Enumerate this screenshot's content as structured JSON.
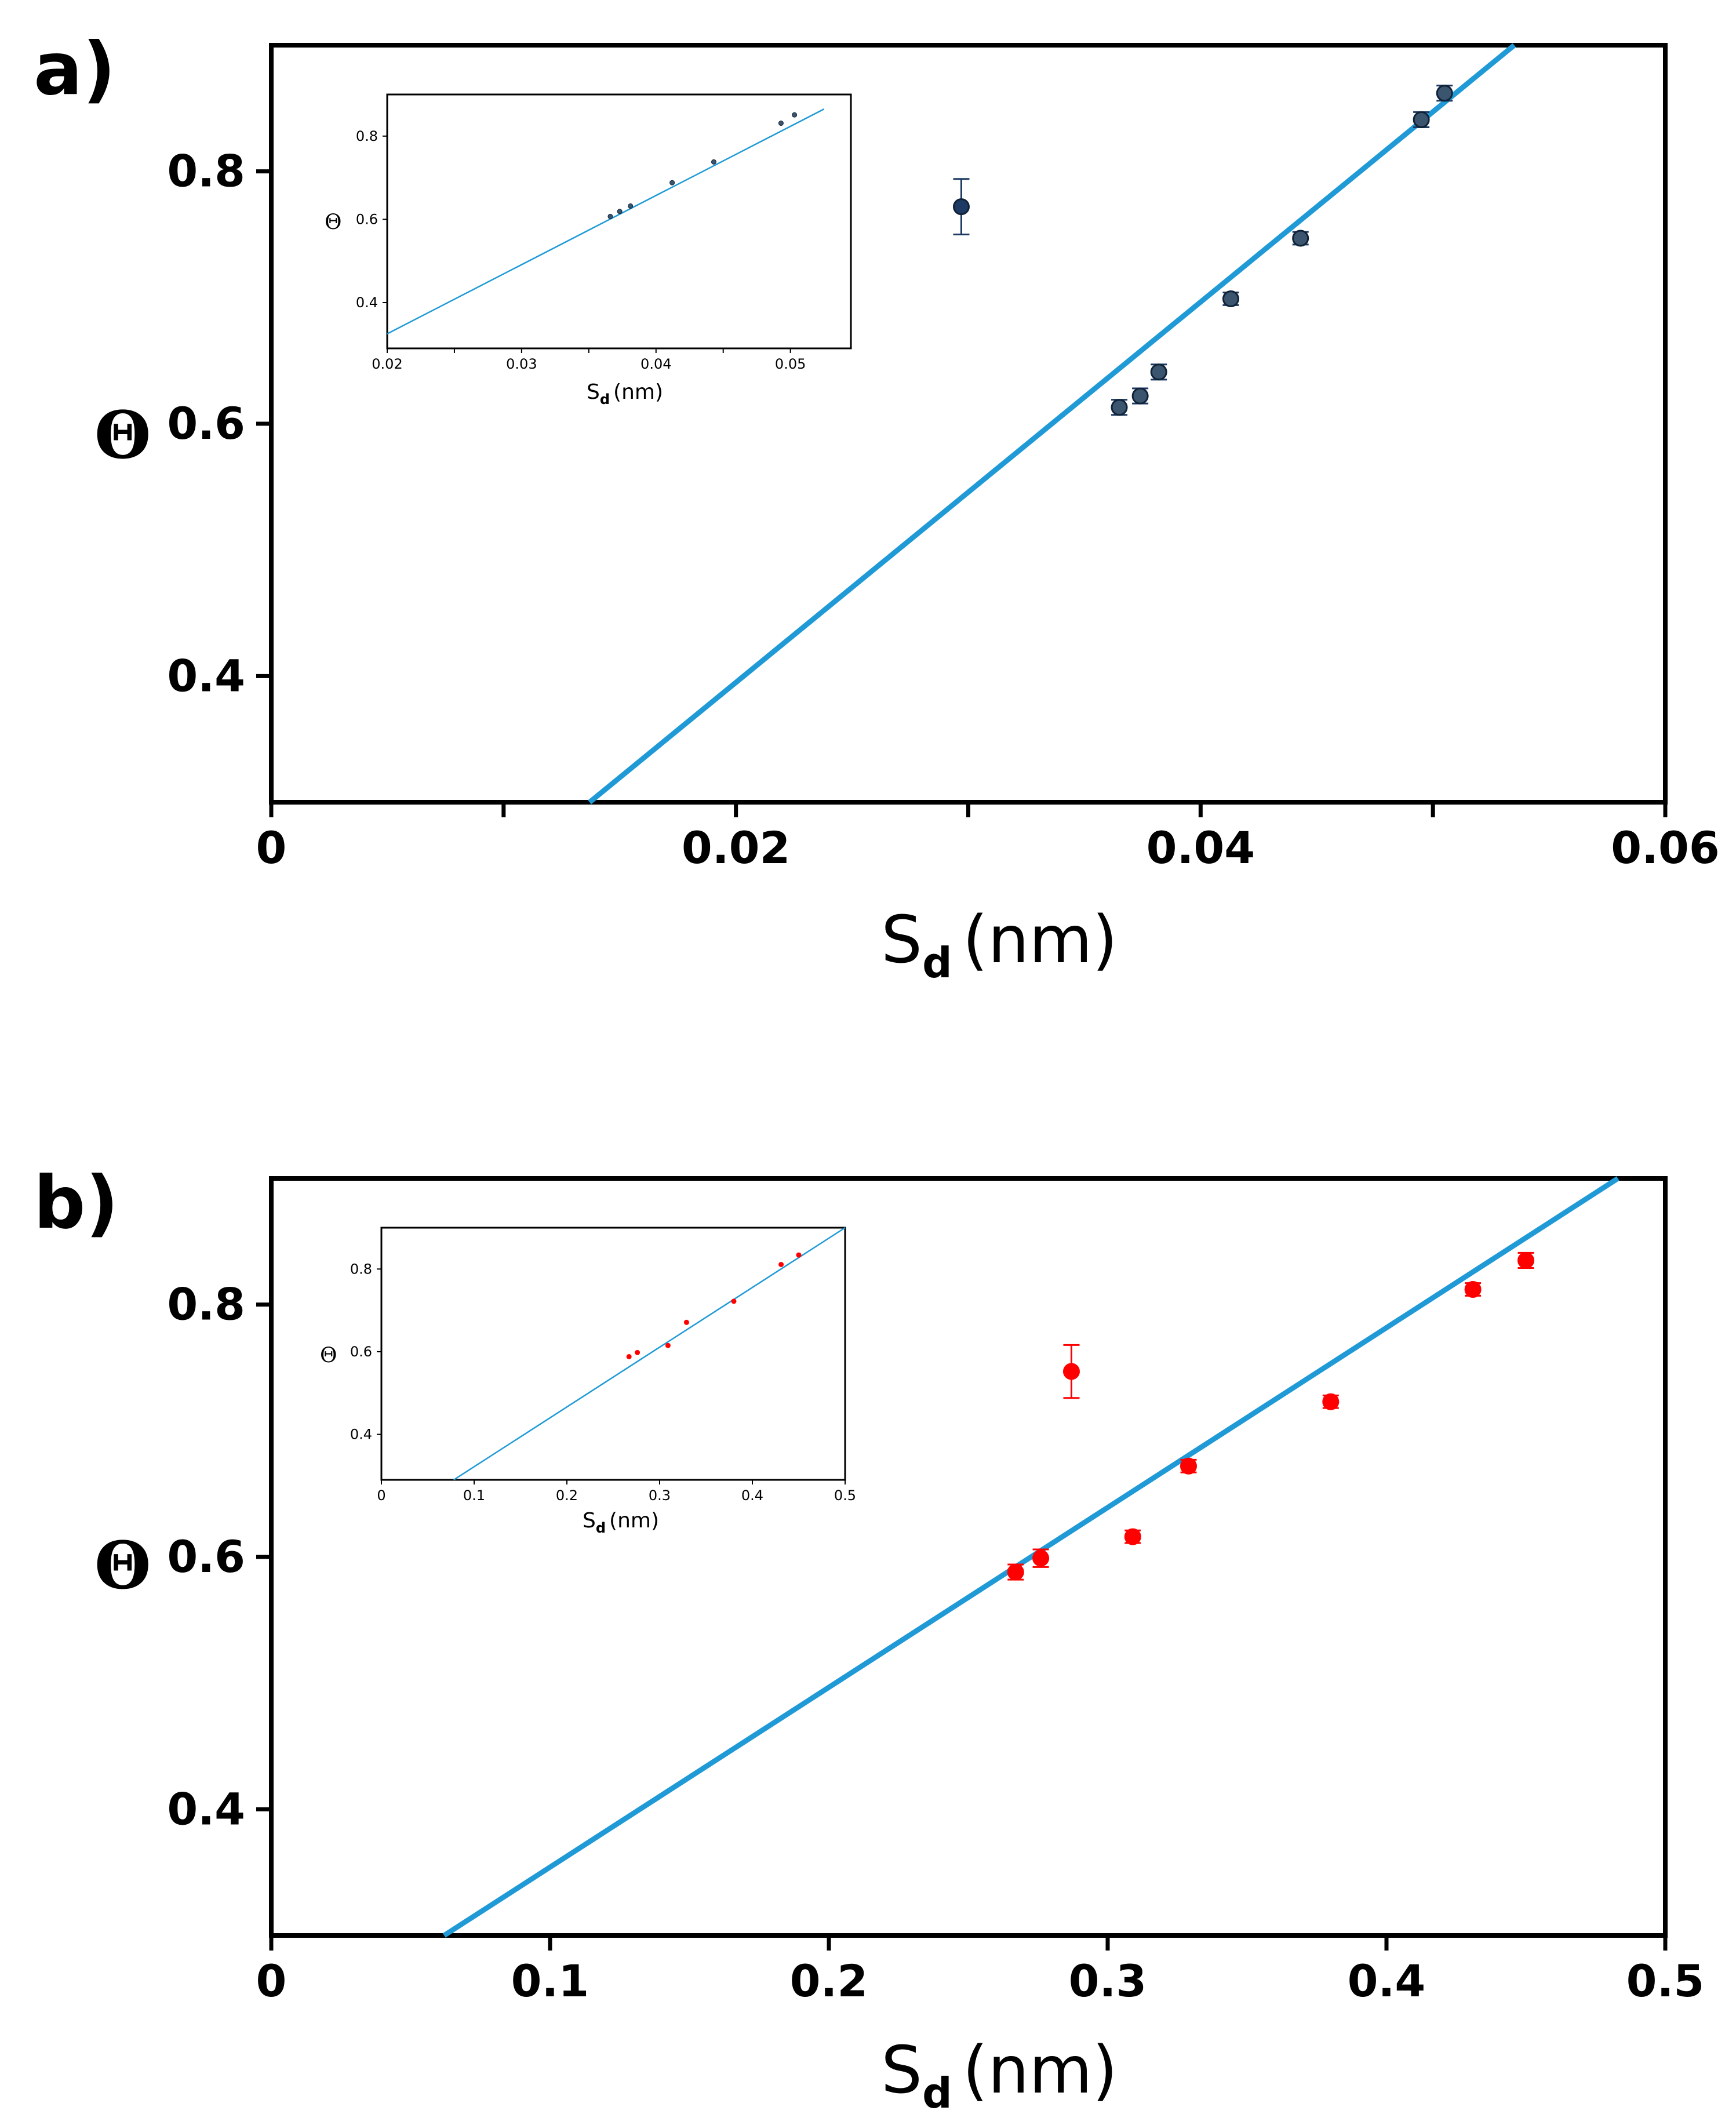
{
  "colors": {
    "fit_line": "#1f9ad6",
    "series_a": "#1c3a63",
    "series_a_fill": "#3c556f",
    "series_b": "#ff0000",
    "axis": "#000000"
  },
  "chart_data": [
    {
      "id": "a",
      "type": "scatter",
      "panel_label": "a)",
      "ylabel": "Θ",
      "xlabel_main": "S",
      "xlabel_sub": "d",
      "xlabel_unit": "(nm)",
      "xlim": [
        0,
        0.06
      ],
      "ylim": [
        0.3,
        0.9
      ],
      "xticks": [
        {
          "value": 0,
          "label": "0"
        },
        {
          "value": 0.01,
          "label": ""
        },
        {
          "value": 0.02,
          "label": "0.02"
        },
        {
          "value": 0.03,
          "label": ""
        },
        {
          "value": 0.04,
          "label": "0.04"
        },
        {
          "value": 0.05,
          "label": ""
        },
        {
          "value": 0.06,
          "label": "0.06"
        }
      ],
      "yticks": [
        {
          "value": 0.4,
          "label": "0.4"
        },
        {
          "value": 0.6,
          "label": "0.6"
        },
        {
          "value": 0.8,
          "label": "0.8"
        }
      ],
      "fit_line": {
        "x": [
          0.0137,
          0.0535
        ],
        "y": [
          0.3,
          0.9
        ]
      },
      "points": [
        {
          "x": 0.0297,
          "y": 0.772,
          "err": 0.022,
          "highlight": true
        },
        {
          "x": 0.0365,
          "y": 0.613,
          "err": 0.006
        },
        {
          "x": 0.0374,
          "y": 0.622,
          "err": 0.006
        },
        {
          "x": 0.0382,
          "y": 0.641,
          "err": 0.006
        },
        {
          "x": 0.0413,
          "y": 0.699,
          "err": 0.005
        },
        {
          "x": 0.0443,
          "y": 0.747,
          "err": 0.005
        },
        {
          "x": 0.0495,
          "y": 0.841,
          "err": 0.006
        },
        {
          "x": 0.0505,
          "y": 0.862,
          "err": 0.006
        }
      ],
      "inset": {
        "xlim": [
          0.02,
          0.0545
        ],
        "ylim": [
          0.29,
          0.9
        ],
        "xticks": [
          {
            "value": 0.02,
            "label": "0.02"
          },
          {
            "value": 0.025,
            "label": ""
          },
          {
            "value": 0.03,
            "label": "0.03"
          },
          {
            "value": 0.035,
            "label": ""
          },
          {
            "value": 0.04,
            "label": "0.04"
          },
          {
            "value": 0.045,
            "label": ""
          },
          {
            "value": 0.05,
            "label": "0.05"
          }
        ],
        "yticks": [
          {
            "value": 0.4,
            "label": "0.4"
          },
          {
            "value": 0.6,
            "label": "0.6"
          },
          {
            "value": 0.8,
            "label": "0.8"
          }
        ],
        "ylabel": "Θ",
        "xlabel_main": "S",
        "xlabel_sub": "d",
        "xlabel_unit": "(nm)",
        "fit_line": {
          "x": [
            0.02,
            0.0525
          ],
          "y": [
            0.325,
            0.865
          ]
        },
        "points": [
          {
            "x": 0.0366,
            "y": 0.607
          },
          {
            "x": 0.0373,
            "y": 0.619
          },
          {
            "x": 0.0381,
            "y": 0.632
          },
          {
            "x": 0.0412,
            "y": 0.688
          },
          {
            "x": 0.0443,
            "y": 0.738
          },
          {
            "x": 0.0493,
            "y": 0.831
          },
          {
            "x": 0.0503,
            "y": 0.851
          }
        ]
      }
    },
    {
      "id": "b",
      "type": "scatter",
      "panel_label": "b)",
      "ylabel": "Θ",
      "xlabel_main": "S",
      "xlabel_sub": "d",
      "xlabel_unit": "(nm)",
      "xlim": [
        0,
        0.5
      ],
      "ylim": [
        0.3,
        0.9
      ],
      "xticks": [
        {
          "value": 0,
          "label": "0"
        },
        {
          "value": 0.1,
          "label": "0.1"
        },
        {
          "value": 0.2,
          "label": "0.2"
        },
        {
          "value": 0.3,
          "label": "0.3"
        },
        {
          "value": 0.4,
          "label": "0.4"
        },
        {
          "value": 0.5,
          "label": "0.5"
        }
      ],
      "yticks": [
        {
          "value": 0.4,
          "label": "0.4"
        },
        {
          "value": 0.6,
          "label": "0.6"
        },
        {
          "value": 0.8,
          "label": "0.8"
        }
      ],
      "fit_line": {
        "x": [
          0.062,
          0.483
        ],
        "y": [
          0.3,
          0.9
        ]
      },
      "points": [
        {
          "x": 0.267,
          "y": 0.588,
          "err": 0.006
        },
        {
          "x": 0.276,
          "y": 0.599,
          "err": 0.007
        },
        {
          "x": 0.287,
          "y": 0.747,
          "err": 0.021
        },
        {
          "x": 0.309,
          "y": 0.616,
          "err": 0.005
        },
        {
          "x": 0.329,
          "y": 0.672,
          "err": 0.005
        },
        {
          "x": 0.38,
          "y": 0.723,
          "err": 0.005
        },
        {
          "x": 0.431,
          "y": 0.812,
          "err": 0.005
        },
        {
          "x": 0.45,
          "y": 0.835,
          "err": 0.006
        }
      ],
      "inset": {
        "xlim": [
          0,
          0.5
        ],
        "ylim": [
          0.29,
          0.9
        ],
        "xticks": [
          {
            "value": 0,
            "label": "0"
          },
          {
            "value": 0.1,
            "label": "0.1"
          },
          {
            "value": 0.2,
            "label": "0.2"
          },
          {
            "value": 0.3,
            "label": "0.3"
          },
          {
            "value": 0.4,
            "label": "0.4"
          },
          {
            "value": 0.5,
            "label": "0.5"
          }
        ],
        "yticks": [
          {
            "value": 0.4,
            "label": "0.4"
          },
          {
            "value": 0.6,
            "label": "0.6"
          },
          {
            "value": 0.8,
            "label": "0.8"
          }
        ],
        "ylabel": "Θ",
        "xlabel_main": "S",
        "xlabel_sub": "d",
        "xlabel_unit": "(nm)",
        "fit_line": {
          "x": [
            0.078,
            0.5
          ],
          "y": [
            0.29,
            0.9
          ]
        },
        "points": [
          {
            "x": 0.267,
            "y": 0.588
          },
          {
            "x": 0.276,
            "y": 0.598
          },
          {
            "x": 0.309,
            "y": 0.615
          },
          {
            "x": 0.329,
            "y": 0.671
          },
          {
            "x": 0.38,
            "y": 0.722
          },
          {
            "x": 0.431,
            "y": 0.811
          },
          {
            "x": 0.45,
            "y": 0.834
          }
        ]
      }
    }
  ]
}
